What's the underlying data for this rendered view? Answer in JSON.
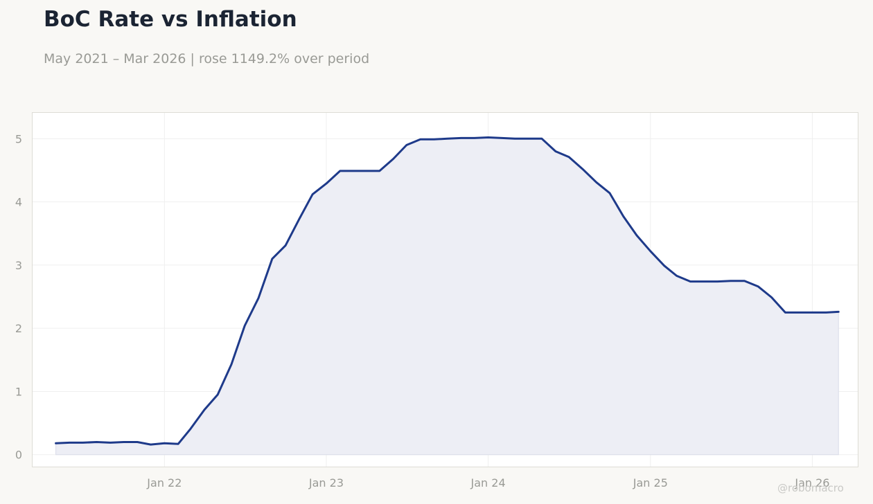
{
  "title": "BoC Rate vs Inflation",
  "subtitle": "May 2021 – Mar 2026 | rose 1149.2% over period",
  "watermark": "@robomacro",
  "colors": {
    "background": "#f9f8f5",
    "plot_background": "#ffffff",
    "line": "#1e3a8a",
    "fill": "#edeef5",
    "grid": "#efefef",
    "frame": "#dddcd5",
    "tick_text": "#999a95",
    "title": "#1b2433"
  },
  "chart_data": {
    "type": "area",
    "title": "BoC Rate vs Inflation",
    "subtitle": "May 2021 – Mar 2026 | rose 1149.2% over period",
    "xlabel": "",
    "ylabel": "",
    "grid": true,
    "legend": "none",
    "xlim": [
      "2021-03-08",
      "2026-04-15"
    ],
    "ylim": [
      -0.2,
      5.42
    ],
    "x_ticks": [
      {
        "date": "2022-01-01",
        "label": "Jan 22"
      },
      {
        "date": "2023-01-01",
        "label": "Jan 23"
      },
      {
        "date": "2024-01-01",
        "label": "Jan 24"
      },
      {
        "date": "2025-01-01",
        "label": "Jan 25"
      },
      {
        "date": "2026-01-01",
        "label": "Jan 26"
      }
    ],
    "y_ticks": [
      0,
      1,
      2,
      3,
      4,
      5
    ],
    "x": [
      "2021-05-01",
      "2021-06-01",
      "2021-07-01",
      "2021-08-01",
      "2021-09-01",
      "2021-10-01",
      "2021-11-01",
      "2021-12-01",
      "2022-01-01",
      "2022-02-01",
      "2022-03-01",
      "2022-04-01",
      "2022-05-01",
      "2022-06-01",
      "2022-07-01",
      "2022-08-01",
      "2022-09-01",
      "2022-10-01",
      "2022-11-01",
      "2022-12-01",
      "2023-01-01",
      "2023-02-01",
      "2023-03-01",
      "2023-04-01",
      "2023-05-01",
      "2023-06-01",
      "2023-07-01",
      "2023-08-01",
      "2023-09-01",
      "2023-10-01",
      "2023-11-01",
      "2023-12-01",
      "2024-01-01",
      "2024-02-01",
      "2024-03-01",
      "2024-04-01",
      "2024-05-01",
      "2024-06-01",
      "2024-07-01",
      "2024-08-01",
      "2024-09-01",
      "2024-10-01",
      "2024-11-01",
      "2024-12-01",
      "2025-01-01",
      "2025-02-01",
      "2025-03-01",
      "2025-04-01",
      "2025-05-01",
      "2025-06-01",
      "2025-07-01",
      "2025-08-01",
      "2025-09-01",
      "2025-10-01",
      "2025-11-01",
      "2025-12-01",
      "2026-01-01",
      "2026-02-01",
      "2026-03-01"
    ],
    "series": [
      {
        "values": [
          0.18,
          0.19,
          0.19,
          0.2,
          0.19,
          0.2,
          0.2,
          0.16,
          0.18,
          0.17,
          0.41,
          0.71,
          0.95,
          1.43,
          2.04,
          2.48,
          3.1,
          3.31,
          3.73,
          4.12,
          4.29,
          4.49,
          4.49,
          4.49,
          4.49,
          4.68,
          4.9,
          4.99,
          4.99,
          5.0,
          5.01,
          5.01,
          5.02,
          5.01,
          5.0,
          5.0,
          5.0,
          4.8,
          4.71,
          4.52,
          4.31,
          4.14,
          3.77,
          3.47,
          3.22,
          2.99,
          2.83,
          2.74,
          2.74,
          2.74,
          2.75,
          2.75,
          2.66,
          2.49,
          2.25,
          2.25,
          2.25,
          2.25,
          2.26
        ]
      }
    ]
  }
}
